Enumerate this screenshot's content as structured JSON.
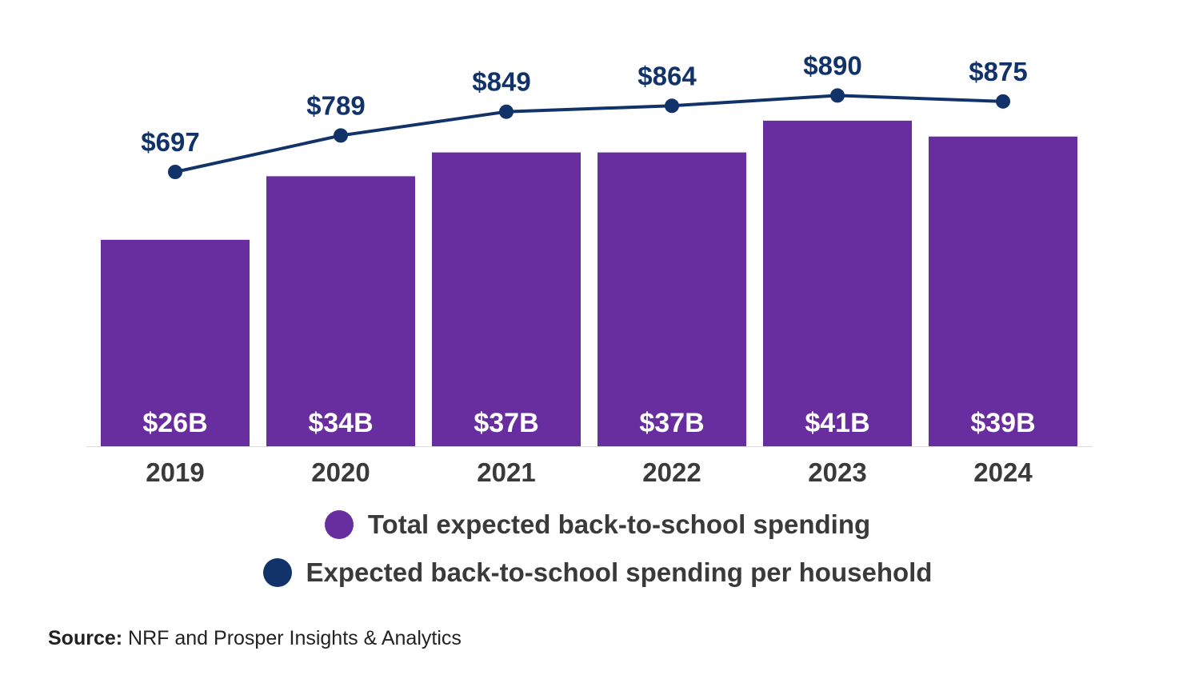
{
  "chart_data": {
    "type": "bar",
    "categories": [
      "2019",
      "2020",
      "2021",
      "2022",
      "2023",
      "2024"
    ],
    "series": [
      {
        "name": "Total expected back-to-school spending",
        "kind": "bar",
        "values": [
          26,
          34,
          37,
          37,
          41,
          39
        ],
        "labels": [
          "$26B",
          "$34B",
          "$37B",
          "$37B",
          "$41B",
          "$39B"
        ],
        "color": "#682d9e"
      },
      {
        "name": "Expected back-to-school spending per household",
        "kind": "line",
        "values": [
          697,
          789,
          849,
          864,
          890,
          875
        ],
        "labels": [
          "$697",
          "$789",
          "$849",
          "$864",
          "$890",
          "$875"
        ],
        "color": "#11336a"
      }
    ],
    "legend_position": "bottom-center",
    "grid": false
  },
  "source": {
    "label": "Source:",
    "text": " NRF and Prosper Insights & Analytics"
  }
}
